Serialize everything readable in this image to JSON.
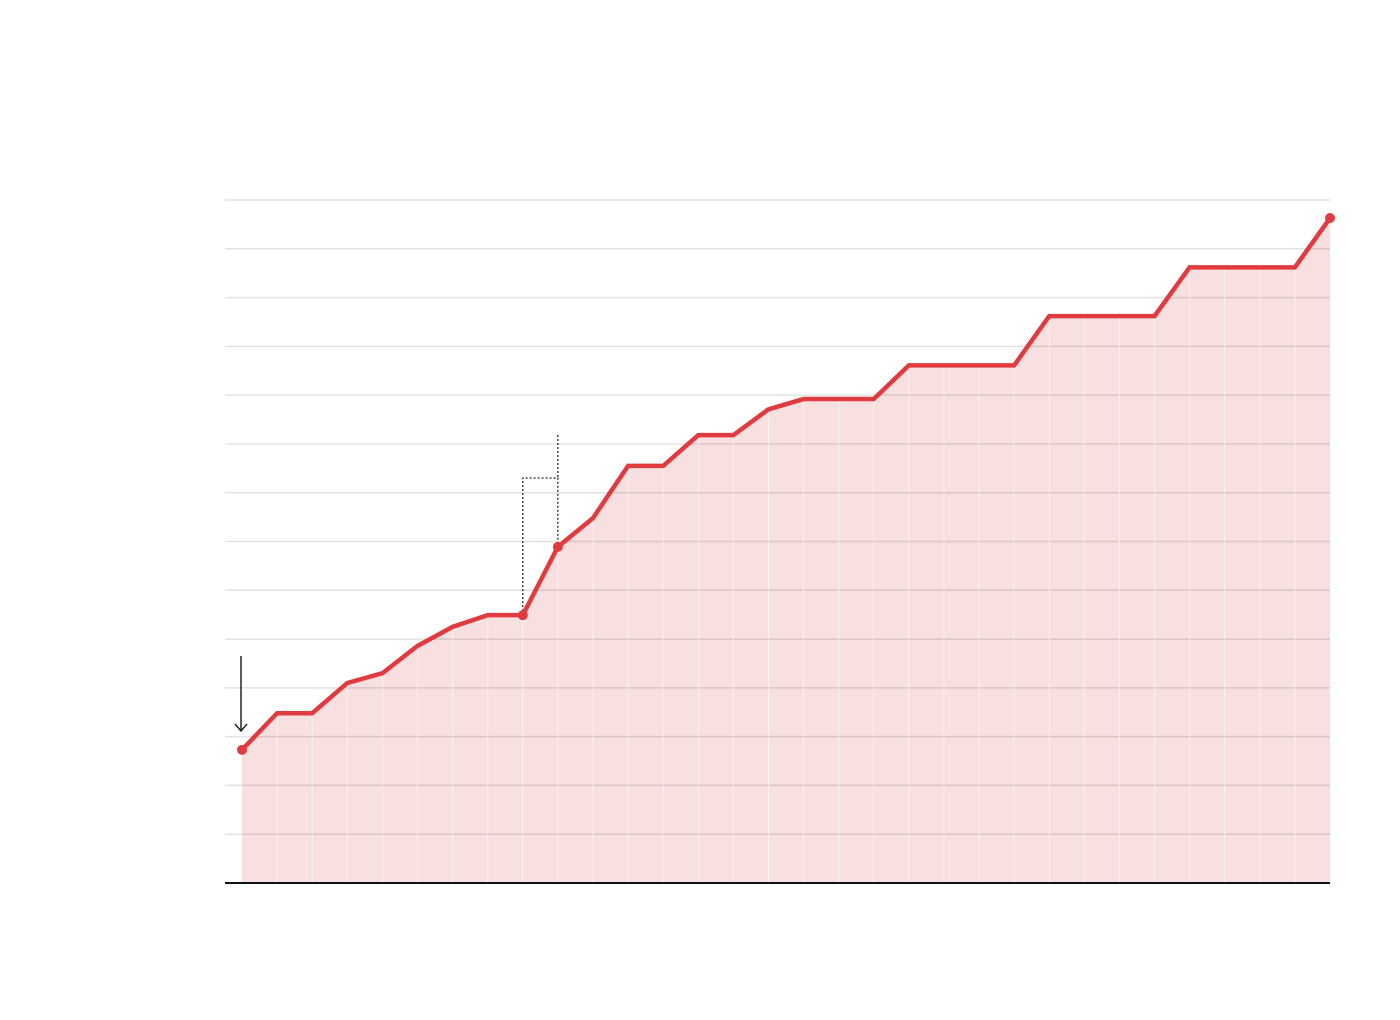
{
  "chart_data": {
    "type": "area",
    "title": "",
    "xlabel": "",
    "ylabel": "",
    "x": [
      1,
      2,
      3,
      4,
      5,
      6,
      7,
      8,
      9,
      10,
      11,
      12,
      13,
      14,
      15,
      16,
      17,
      18,
      19,
      20,
      21,
      22,
      23,
      24,
      25,
      26,
      27,
      28,
      29,
      30,
      31,
      32
    ],
    "series": [
      {
        "name": "",
        "values": [
          2.73,
          3.48,
          3.48,
          4.1,
          4.3,
          4.86,
          5.25,
          5.49,
          5.49,
          6.89,
          7.48,
          8.55,
          8.55,
          9.18,
          9.18,
          9.71,
          9.92,
          9.92,
          9.92,
          10.61,
          10.61,
          10.61,
          10.61,
          11.62,
          11.62,
          11.62,
          11.62,
          12.62,
          12.62,
          12.62,
          12.62,
          13.63
        ]
      }
    ],
    "highlighted_points": [
      1,
      9,
      10,
      32
    ],
    "ylim": [
      0,
      14
    ],
    "grid": true,
    "colors": {
      "line": "#e03c40",
      "fill": "#f7d9da",
      "grid": "#e2e2e2",
      "axis": "#111111"
    }
  }
}
